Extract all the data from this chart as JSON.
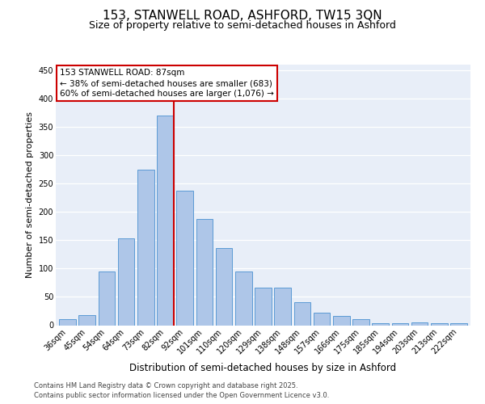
{
  "title1": "153, STANWELL ROAD, ASHFORD, TW15 3QN",
  "title2": "Size of property relative to semi-detached houses in Ashford",
  "xlabel": "Distribution of semi-detached houses by size in Ashford",
  "ylabel": "Number of semi-detached properties",
  "categories": [
    "36sqm",
    "45sqm",
    "54sqm",
    "64sqm",
    "73sqm",
    "82sqm",
    "92sqm",
    "101sqm",
    "110sqm",
    "120sqm",
    "129sqm",
    "138sqm",
    "148sqm",
    "157sqm",
    "166sqm",
    "175sqm",
    "185sqm",
    "194sqm",
    "203sqm",
    "213sqm",
    "222sqm"
  ],
  "values": [
    10,
    18,
    95,
    153,
    275,
    370,
    237,
    188,
    136,
    95,
    67,
    67,
    40,
    22,
    17,
    10,
    4,
    4,
    5,
    3,
    3
  ],
  "bar_color": "#aec6e8",
  "bar_edge_color": "#5b9bd5",
  "annotation_title": "153 STANWELL ROAD: 87sqm",
  "annotation_line1": "← 38% of semi-detached houses are smaller (683)",
  "annotation_line2": "60% of semi-detached houses are larger (1,076) →",
  "annotation_box_color": "#ffffff",
  "annotation_box_edge_color": "#cc0000",
  "red_line_color": "#cc0000",
  "red_line_bar_index": 5,
  "ylim": [
    0,
    460
  ],
  "yticks": [
    0,
    50,
    100,
    150,
    200,
    250,
    300,
    350,
    400,
    450
  ],
  "footer1": "Contains HM Land Registry data © Crown copyright and database right 2025.",
  "footer2": "Contains public sector information licensed under the Open Government Licence v3.0.",
  "background_color": "#e8eef8",
  "grid_color": "#ffffff",
  "title1_fontsize": 11,
  "title2_fontsize": 9,
  "xlabel_fontsize": 8.5,
  "ylabel_fontsize": 8,
  "tick_fontsize": 7,
  "annotation_fontsize": 7.5,
  "footer_fontsize": 6
}
